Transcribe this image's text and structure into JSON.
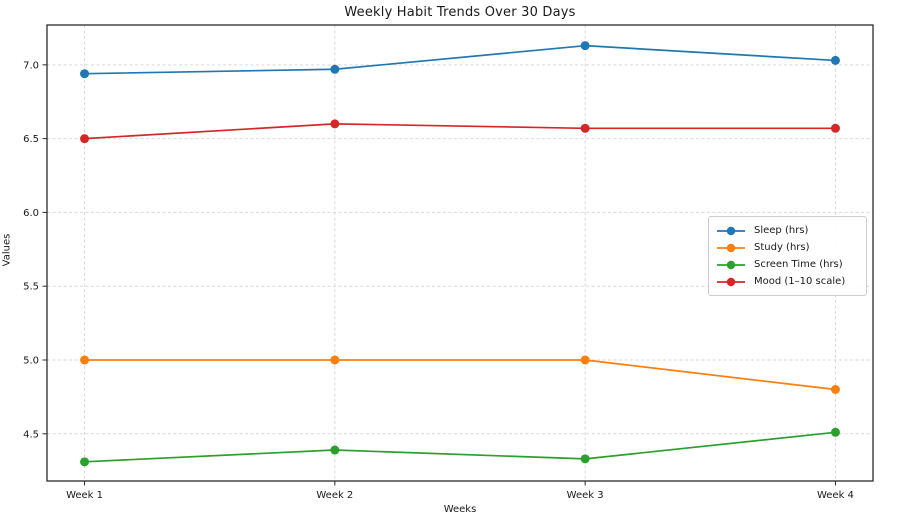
{
  "chart_data": {
    "type": "line",
    "title": "Weekly Habit Trends Over 30 Days",
    "xlabel": "Weeks",
    "ylabel": "Values",
    "categories": [
      "Week 1",
      "Week 2",
      "Week 3",
      "Week 4"
    ],
    "series": [
      {
        "name": "Sleep (hrs)",
        "color": "#1f77b4",
        "values": [
          6.94,
          6.97,
          7.13,
          7.03
        ]
      },
      {
        "name": "Study (hrs)",
        "color": "#ff7f0e",
        "values": [
          5.0,
          5.0,
          5.0,
          4.8
        ]
      },
      {
        "name": "Screen Time (hrs)",
        "color": "#2ca02c",
        "values": [
          4.31,
          4.39,
          4.33,
          4.51
        ]
      },
      {
        "name": "Mood (1–10 scale)",
        "color": "#d62728",
        "values": [
          6.5,
          6.6,
          6.57,
          6.57
        ]
      }
    ],
    "yticks": [
      4.5,
      5.0,
      5.5,
      6.0,
      6.5,
      7.0
    ],
    "ylim": [
      4.18,
      7.27
    ],
    "xlim": [
      -0.15,
      3.15
    ],
    "grid": true,
    "grid_linestyle": "dashed",
    "legend_position": "center right",
    "style": {
      "grid_color": "#d9d9d9",
      "spine_color": "#2b2b2b",
      "tick_color": "#2b2b2b",
      "text_color": "#1a1a1a",
      "background": "#ffffff"
    },
    "marker": "circle",
    "marker_radius": 4.5,
    "line_width": 1.7
  }
}
